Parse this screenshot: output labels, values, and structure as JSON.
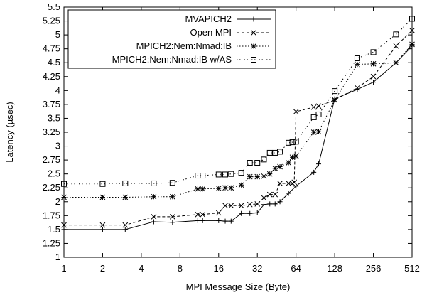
{
  "chart_data": {
    "type": "line",
    "title": "",
    "xlabel": "MPI Message Size (Byte)",
    "ylabel": "Latency (µsec)",
    "x_scale": "log2",
    "xlim": [
      1,
      512
    ],
    "ylim": [
      1,
      5.5
    ],
    "x_ticks": [
      1,
      2,
      4,
      8,
      16,
      32,
      64,
      128,
      256,
      512
    ],
    "x_tick_labels": [
      "1",
      "2",
      "4",
      "8",
      "16",
      "32",
      "64",
      "128",
      "256",
      "512"
    ],
    "y_ticks": [
      1,
      1.25,
      1.5,
      1.75,
      2,
      2.25,
      2.5,
      2.75,
      3,
      3.25,
      3.5,
      3.75,
      4,
      4.25,
      4.5,
      4.75,
      5,
      5.25,
      5.5
    ],
    "y_tick_labels": [
      "1",
      "1.25",
      "1.5",
      "1.75",
      "2",
      "2.25",
      "2.5",
      "2.75",
      "3",
      "3.25",
      "3.5",
      "3.75",
      "4",
      "4.25",
      "4.5",
      "4.75",
      "5",
      "5.25",
      "5.5"
    ],
    "grid": false,
    "legend_position": "top-left",
    "series": [
      {
        "name": "MVAPICH2",
        "marker": "plus",
        "dash": "solid",
        "color": "#000000",
        "x": [
          1,
          2,
          3,
          5,
          7,
          11,
          12,
          16,
          18,
          20,
          24,
          28,
          32,
          36,
          40,
          44,
          48,
          56,
          64,
          88,
          96,
          128,
          192,
          256,
          384,
          512
        ],
        "y": [
          1.5,
          1.5,
          1.5,
          1.64,
          1.63,
          1.66,
          1.66,
          1.66,
          1.65,
          1.65,
          1.79,
          1.79,
          1.8,
          1.95,
          1.96,
          1.96,
          2.0,
          2.15,
          2.28,
          2.53,
          2.68,
          3.85,
          4.02,
          4.15,
          4.5,
          4.8
        ]
      },
      {
        "name": "Open MPI",
        "marker": "cross",
        "dash": "dashed",
        "color": "#000000",
        "x": [
          1,
          2,
          3,
          5,
          7,
          11,
          12,
          16,
          18,
          20,
          24,
          28,
          32,
          36,
          40,
          44,
          48,
          56,
          60,
          62,
          64,
          88,
          96,
          128,
          192,
          256,
          384,
          512
        ],
        "y": [
          1.58,
          1.58,
          1.58,
          1.73,
          1.73,
          1.77,
          1.77,
          1.8,
          1.93,
          1.93,
          1.93,
          1.95,
          1.96,
          2.07,
          2.13,
          2.13,
          2.33,
          2.33,
          2.33,
          2.35,
          3.62,
          3.7,
          3.72,
          3.83,
          4.05,
          4.25,
          4.8,
          5.08
        ]
      },
      {
        "name": "MPICH2:Nem:Nmad:IB",
        "marker": "star",
        "dash": "dotted",
        "color": "#000000",
        "x": [
          1,
          2,
          3,
          5,
          7,
          11,
          12,
          16,
          18,
          20,
          24,
          28,
          32,
          36,
          40,
          44,
          48,
          56,
          60,
          64,
          88,
          96,
          128,
          192,
          256,
          384,
          512
        ],
        "y": [
          2.08,
          2.08,
          2.08,
          2.09,
          2.09,
          2.23,
          2.23,
          2.24,
          2.25,
          2.25,
          2.3,
          2.45,
          2.45,
          2.46,
          2.5,
          2.6,
          2.63,
          2.7,
          2.8,
          2.82,
          3.25,
          3.26,
          3.83,
          4.47,
          4.48,
          4.5,
          4.83
        ]
      },
      {
        "name": "MPICH2:Nem:Nmad:IB w/AS",
        "marker": "square",
        "dash": "dashdot",
        "color": "#000000",
        "x": [
          1,
          2,
          3,
          5,
          7,
          11,
          12,
          16,
          18,
          20,
          24,
          28,
          32,
          36,
          40,
          44,
          48,
          56,
          60,
          64,
          88,
          96,
          128,
          192,
          256,
          384,
          512
        ],
        "y": [
          2.32,
          2.32,
          2.33,
          2.33,
          2.34,
          2.47,
          2.47,
          2.49,
          2.49,
          2.5,
          2.52,
          2.7,
          2.7,
          2.76,
          2.88,
          2.88,
          2.9,
          3.06,
          3.07,
          3.08,
          3.52,
          3.57,
          3.99,
          4.58,
          4.69,
          5.01,
          5.29
        ]
      }
    ]
  }
}
